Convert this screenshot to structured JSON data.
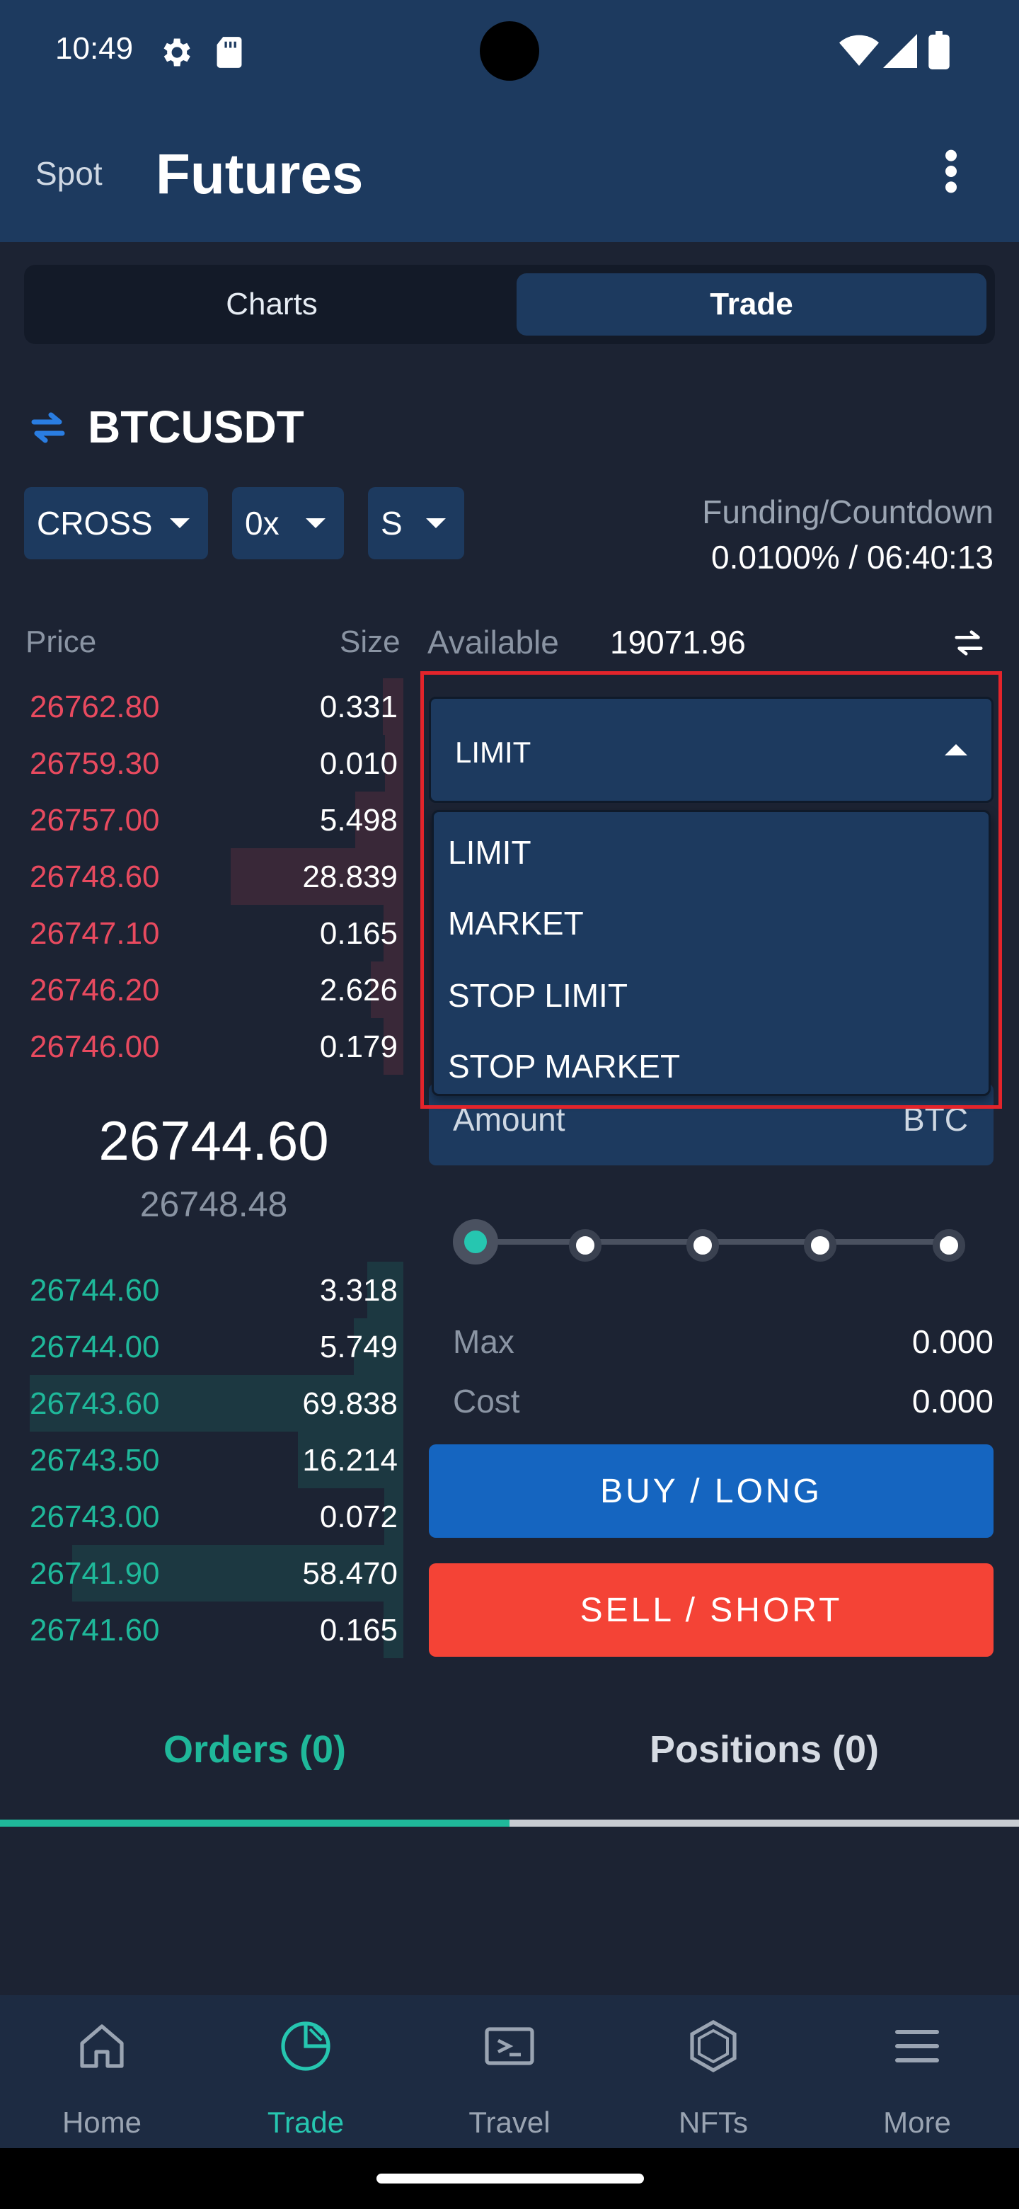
{
  "status_bar": {
    "time": "10:49"
  },
  "header": {
    "spot_label": "Spot",
    "title": "Futures"
  },
  "segmented": {
    "charts": "Charts",
    "trade": "Trade"
  },
  "symbol": {
    "name": "BTCUSDT"
  },
  "chips": {
    "margin_mode": "CROSS",
    "leverage": "0x",
    "side": "S"
  },
  "funding": {
    "label": "Funding/Countdown",
    "value": "0.0100% / 06:40:13"
  },
  "order_book": {
    "price_header": "Price",
    "size_header": "Size",
    "asks": [
      {
        "price": "26762.80",
        "size": "0.331"
      },
      {
        "price": "26759.30",
        "size": "0.010"
      },
      {
        "price": "26757.00",
        "size": "5.498"
      },
      {
        "price": "26748.60",
        "size": "28.839"
      },
      {
        "price": "26747.10",
        "size": "0.165"
      },
      {
        "price": "26746.20",
        "size": "2.626"
      },
      {
        "price": "26746.00",
        "size": "0.179"
      }
    ],
    "last_price": "26744.60",
    "mark_price": "26748.48",
    "bids": [
      {
        "price": "26744.60",
        "size": "3.318"
      },
      {
        "price": "26744.00",
        "size": "5.749"
      },
      {
        "price": "26743.60",
        "size": "69.838"
      },
      {
        "price": "26743.50",
        "size": "16.214"
      },
      {
        "price": "26743.00",
        "size": "0.072"
      },
      {
        "price": "26741.90",
        "size": "58.470"
      },
      {
        "price": "26741.60",
        "size": "0.165"
      }
    ]
  },
  "trade_panel": {
    "available_label": "Available",
    "available_value": "19071.96",
    "order_type": {
      "selected": "LIMIT",
      "options": [
        "LIMIT",
        "MARKET",
        "STOP LIMIT",
        "STOP MARKET"
      ]
    },
    "amount_label": "Amount",
    "amount_unit": "BTC",
    "max_label": "Max",
    "max_value": "0.000",
    "cost_label": "Cost",
    "cost_value": "0.000",
    "buy_label": "BUY / LONG",
    "sell_label": "SELL / SHORT"
  },
  "tabs": {
    "orders": "Orders (0)",
    "positions": "Positions (0)"
  },
  "bottom_nav": [
    {
      "label": "Home",
      "icon": "home-icon"
    },
    {
      "label": "Trade",
      "icon": "pie-chart-icon"
    },
    {
      "label": "Travel",
      "icon": "ticket-icon"
    },
    {
      "label": "NFTs",
      "icon": "hexagon-icon"
    },
    {
      "label": "More",
      "icon": "menu-icon"
    }
  ],
  "colors": {
    "header_bg": "#1d3a5f",
    "page_bg": "#1c2333",
    "ask": "#e84a5f",
    "bid": "#1fb89a",
    "buy": "#1565c0",
    "sell": "#f44336",
    "accent": "#26c6b0",
    "highlight": "#e3242b"
  }
}
